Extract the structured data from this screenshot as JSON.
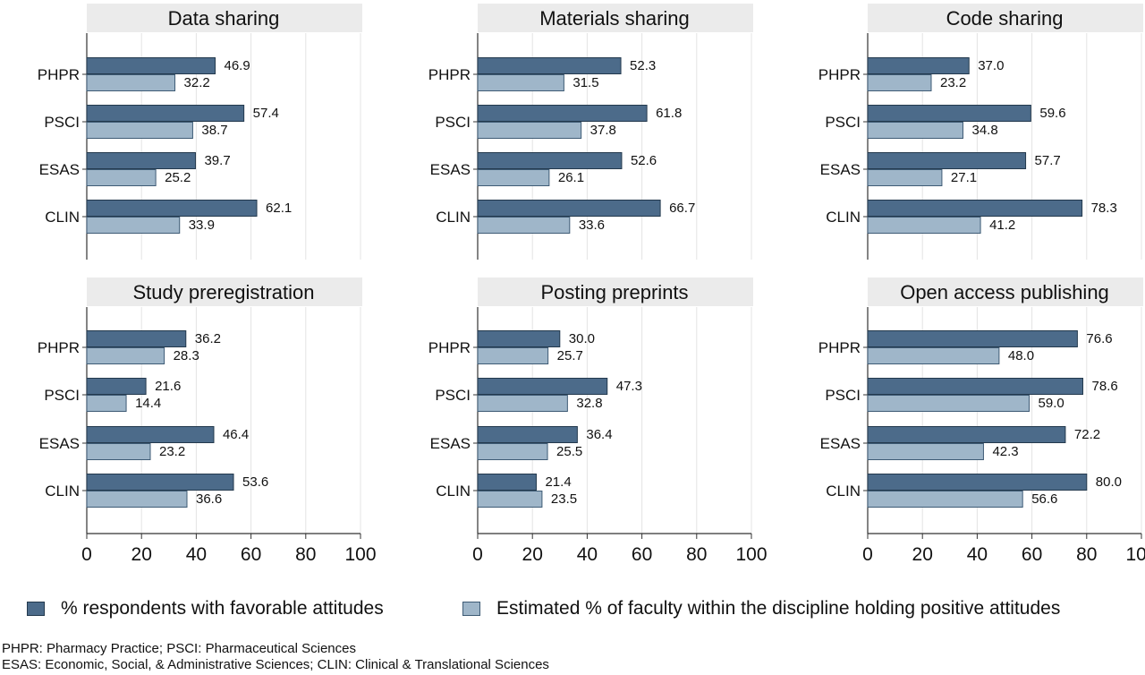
{
  "colors": {
    "favorable": "#4c6b8a",
    "favorable_edge": "#23394d",
    "estimated": "#9fb6c9",
    "estimated_edge": "#3e5b75",
    "panel_header_bg": "#ebebeb",
    "grid": "#e4e4e4"
  },
  "chart_data": [
    {
      "type": "bar",
      "orientation": "horizontal",
      "title": "Data sharing",
      "categories": [
        "PHPR",
        "PSCI",
        "ESAS",
        "CLIN"
      ],
      "series": [
        {
          "name": "% respondents with favorable attitudes",
          "values": [
            46.9,
            57.4,
            39.7,
            62.1
          ]
        },
        {
          "name": "Estimated % of faculty within the discipline holding positive attitudes",
          "values": [
            32.2,
            38.7,
            25.2,
            33.9
          ]
        }
      ],
      "xlim": [
        0,
        100
      ],
      "grid": true
    },
    {
      "type": "bar",
      "orientation": "horizontal",
      "title": "Materials sharing",
      "categories": [
        "PHPR",
        "PSCI",
        "ESAS",
        "CLIN"
      ],
      "series": [
        {
          "name": "% respondents with favorable attitudes",
          "values": [
            52.3,
            61.8,
            52.6,
            66.7
          ]
        },
        {
          "name": "Estimated % of faculty within the discipline holding positive attitudes",
          "values": [
            31.5,
            37.8,
            26.1,
            33.6
          ]
        }
      ],
      "xlim": [
        0,
        100
      ],
      "grid": true
    },
    {
      "type": "bar",
      "orientation": "horizontal",
      "title": "Code sharing",
      "categories": [
        "PHPR",
        "PSCI",
        "ESAS",
        "CLIN"
      ],
      "series": [
        {
          "name": "% respondents with favorable attitudes",
          "values": [
            37.0,
            59.6,
            57.7,
            78.3
          ]
        },
        {
          "name": "Estimated % of faculty within the discipline holding positive attitudes",
          "values": [
            23.2,
            34.8,
            27.1,
            41.2
          ]
        }
      ],
      "xlim": [
        0,
        100
      ],
      "grid": true
    },
    {
      "type": "bar",
      "orientation": "horizontal",
      "title": "Study preregistration",
      "categories": [
        "PHPR",
        "PSCI",
        "ESAS",
        "CLIN"
      ],
      "series": [
        {
          "name": "% respondents with favorable attitudes",
          "values": [
            36.2,
            21.6,
            46.4,
            53.6
          ]
        },
        {
          "name": "Estimated % of faculty within the discipline holding positive attitudes",
          "values": [
            28.3,
            14.4,
            23.2,
            36.6
          ]
        }
      ],
      "xlim": [
        0,
        100
      ],
      "xticks": [
        0,
        20,
        40,
        60,
        80,
        100
      ],
      "grid": true
    },
    {
      "type": "bar",
      "orientation": "horizontal",
      "title": "Posting preprints",
      "categories": [
        "PHPR",
        "PSCI",
        "ESAS",
        "CLIN"
      ],
      "series": [
        {
          "name": "% respondents with favorable attitudes",
          "values": [
            30.0,
            47.3,
            36.4,
            21.4
          ]
        },
        {
          "name": "Estimated % of faculty within the discipline holding positive attitudes",
          "values": [
            25.7,
            32.8,
            25.5,
            23.5
          ]
        }
      ],
      "xlim": [
        0,
        100
      ],
      "xticks": [
        0,
        20,
        40,
        60,
        80,
        100
      ],
      "grid": true
    },
    {
      "type": "bar",
      "orientation": "horizontal",
      "title": "Open access publishing",
      "categories": [
        "PHPR",
        "PSCI",
        "ESAS",
        "CLIN"
      ],
      "series": [
        {
          "name": "% respondents with favorable attitudes",
          "values": [
            76.6,
            78.6,
            72.2,
            80.0
          ]
        },
        {
          "name": "Estimated % of faculty within the discipline holding positive attitudes",
          "values": [
            48.0,
            59.0,
            42.3,
            56.6
          ]
        }
      ],
      "xlim": [
        0,
        100
      ],
      "xticks": [
        0,
        20,
        40,
        60,
        80,
        100
      ],
      "grid": true
    }
  ],
  "legend": {
    "position": "bottom",
    "favorable_label": "% respondents with favorable attitudes",
    "estimated_label": "Estimated % of faculty within the discipline holding positive attitudes"
  },
  "notes": {
    "line1": "PHPR: Pharmacy Practice; PSCI: Pharmaceutical Sciences",
    "line2": "ESAS: Economic, Social, & Administrative Sciences; CLIN: Clinical & Translational Sciences"
  }
}
